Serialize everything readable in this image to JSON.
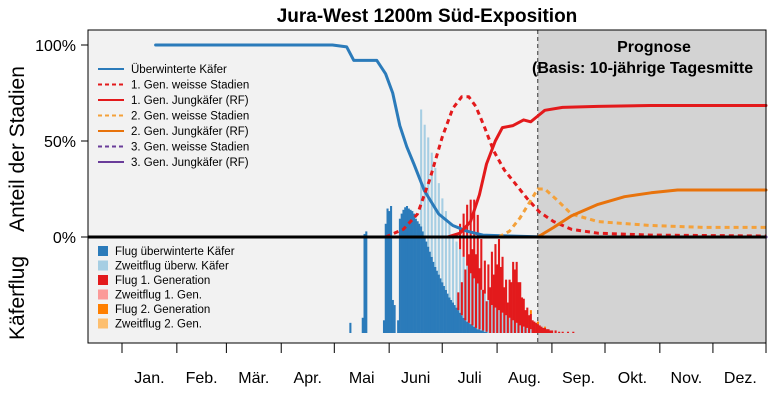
{
  "chart_data": {
    "type": "line",
    "title": "Jura-West 1200m Süd-Exposition",
    "ylabel": "Anteil der Stadien",
    "ylabel2": "Käferflug",
    "ylim": [
      0,
      100
    ],
    "yticks": [
      "100%",
      "50%",
      "0%"
    ],
    "ytick_values": [
      100,
      50,
      0
    ],
    "months": [
      "Jan.",
      "Feb.",
      "Mär.",
      "Apr.",
      "Mai",
      "Juni",
      "Juli",
      "Aug.",
      "Sep.",
      "Okt.",
      "Nov.",
      "Dez."
    ],
    "x_unit": "day_of_year",
    "xlim": [
      1,
      365
    ],
    "forecast": {
      "start_day": 236,
      "label_line1": "Prognose",
      "label_line2": "(Basis: 10-jährige Tagesmitte",
      "shade_color": "#d3d3d3",
      "panel_color": "#f2f2f2"
    },
    "series": [
      {
        "name": "Überwinterte Käfer",
        "color": "#2b7bba",
        "dash": "solid",
        "points": [
          [
            20,
            100
          ],
          [
            80,
            100
          ],
          [
            120,
            100
          ],
          [
            128,
            99
          ],
          [
            132,
            92
          ],
          [
            145,
            92
          ],
          [
            150,
            85
          ],
          [
            154,
            75
          ],
          [
            158,
            58
          ],
          [
            162,
            47
          ],
          [
            166,
            38
          ],
          [
            172,
            24
          ],
          [
            180,
            12
          ],
          [
            188,
            6
          ],
          [
            196,
            3
          ],
          [
            205,
            1
          ],
          [
            220,
            0.5
          ],
          [
            240,
            0
          ],
          [
            365,
            0
          ]
        ]
      },
      {
        "name": "1. Gen. weisse Stadien",
        "color": "#e31a1c",
        "dash": "dotted",
        "points": [
          [
            150,
            0
          ],
          [
            160,
            4
          ],
          [
            168,
            12
          ],
          [
            175,
            30
          ],
          [
            182,
            52
          ],
          [
            188,
            67
          ],
          [
            193,
            73
          ],
          [
            197,
            73
          ],
          [
            201,
            68
          ],
          [
            206,
            57
          ],
          [
            211,
            45
          ],
          [
            217,
            35
          ],
          [
            224,
            27
          ],
          [
            230,
            20
          ],
          [
            237,
            13
          ],
          [
            245,
            8
          ],
          [
            255,
            4
          ],
          [
            270,
            2
          ],
          [
            300,
            1
          ],
          [
            365,
            0.5
          ]
        ]
      },
      {
        "name": "1. Gen. Jungkäfer (RF)",
        "color": "#e31a1c",
        "dash": "solid",
        "points": [
          [
            185,
            0
          ],
          [
            192,
            2
          ],
          [
            198,
            8
          ],
          [
            203,
            22
          ],
          [
            207,
            38
          ],
          [
            212,
            50
          ],
          [
            216,
            57
          ],
          [
            222,
            58
          ],
          [
            228,
            61
          ],
          [
            232,
            60
          ],
          [
            236,
            63
          ],
          [
            240,
            66
          ],
          [
            250,
            67.5
          ],
          [
            270,
            68
          ],
          [
            300,
            68.5
          ],
          [
            365,
            68.5
          ]
        ]
      },
      {
        "name": "2. Gen. weisse Stadien",
        "color": "#f4a13a",
        "dash": "dotted",
        "points": [
          [
            214,
            0
          ],
          [
            220,
            3
          ],
          [
            226,
            10
          ],
          [
            232,
            19
          ],
          [
            236,
            25
          ],
          [
            240,
            25
          ],
          [
            246,
            20
          ],
          [
            255,
            12
          ],
          [
            270,
            8
          ],
          [
            300,
            6
          ],
          [
            330,
            5
          ],
          [
            365,
            5
          ]
        ]
      },
      {
        "name": "2. Gen. Jungkäfer (RF)",
        "color": "#e8730c",
        "dash": "solid",
        "points": [
          [
            236,
            0
          ],
          [
            245,
            5
          ],
          [
            255,
            11
          ],
          [
            270,
            17
          ],
          [
            285,
            21
          ],
          [
            300,
            23
          ],
          [
            315,
            24.5
          ],
          [
            330,
            24.5
          ],
          [
            365,
            24.5
          ]
        ]
      },
      {
        "name": "3. Gen. weisse Stadien",
        "color": "#6a3d9a",
        "dash": "dotted",
        "points": [
          [
            1,
            0
          ],
          [
            365,
            0
          ]
        ]
      },
      {
        "name": "3. Gen. Jungkäfer (RF)",
        "color": "#6a3d9a",
        "dash": "solid",
        "points": [
          [
            1,
            0
          ],
          [
            365,
            0
          ]
        ]
      }
    ],
    "flight_series": [
      {
        "name": "Flug überwinterte Käfer",
        "color": "#2b7bba"
      },
      {
        "name": "Zweitflug überw. Käfer",
        "color": "#a6cee3"
      },
      {
        "name": "Flug 1. Generation",
        "color": "#e31a1c"
      },
      {
        "name": "Zweitflug 1. Gen.",
        "color": "#fb9a99"
      },
      {
        "name": "Flug 2. Generation",
        "color": "#ff7f00"
      },
      {
        "name": "Zweitflug 2. Gen.",
        "color": "#fdbf6f"
      }
    ],
    "flight_bars": [
      {
        "day": 130,
        "value": 8,
        "series": 0
      },
      {
        "day": 137,
        "value": 12,
        "series": 0
      },
      {
        "day": 138,
        "value": 78,
        "series": 0
      },
      {
        "day": 139,
        "value": 80,
        "series": 0
      },
      {
        "day": 149,
        "value": 10,
        "series": 0
      },
      {
        "day": 150,
        "value": 86,
        "series": 0
      },
      {
        "day": 151,
        "value": 98,
        "series": 0
      },
      {
        "day": 152,
        "value": 96,
        "series": 0
      },
      {
        "day": 153,
        "value": 100,
        "series": 0
      },
      {
        "day": 154,
        "value": 26,
        "series": 0
      },
      {
        "day": 155,
        "value": 22,
        "series": 0
      },
      {
        "day": 157,
        "value": 10,
        "series": 0
      },
      {
        "day": 158,
        "value": 90,
        "series": 0
      },
      {
        "day": 159,
        "value": 94,
        "series": 0
      },
      {
        "day": 160,
        "value": 97,
        "series": 0
      },
      {
        "day": 161,
        "value": 99,
        "series": 0
      },
      {
        "day": 162,
        "value": 100,
        "series": 0
      },
      {
        "day": 163,
        "value": 98,
        "series": 0
      },
      {
        "day": 164,
        "value": 97,
        "series": 0
      },
      {
        "day": 165,
        "value": 96,
        "series": 0
      },
      {
        "day": 166,
        "value": 94,
        "series": 0
      },
      {
        "day": 167,
        "value": 90,
        "series": 0
      },
      {
        "day": 168,
        "value": 88,
        "series": 0
      },
      {
        "day": 169,
        "value": 86,
        "series": 0
      },
      {
        "day": 170,
        "value": 84,
        "series": 0
      },
      {
        "day": 171,
        "value": 80,
        "series": 0
      },
      {
        "day": 172,
        "value": 76,
        "series": 0
      },
      {
        "day": 173,
        "value": 72,
        "series": 0
      },
      {
        "day": 174,
        "value": 68,
        "series": 0
      },
      {
        "day": 175,
        "value": 64,
        "series": 0
      },
      {
        "day": 176,
        "value": 60,
        "series": 0
      },
      {
        "day": 177,
        "value": 56,
        "series": 0
      },
      {
        "day": 178,
        "value": 52,
        "series": 0
      },
      {
        "day": 179,
        "value": 49,
        "series": 0
      },
      {
        "day": 180,
        "value": 46,
        "series": 0
      },
      {
        "day": 181,
        "value": 43,
        "series": 0
      },
      {
        "day": 182,
        "value": 40,
        "series": 0
      },
      {
        "day": 183,
        "value": 37,
        "series": 0
      },
      {
        "day": 184,
        "value": 34,
        "series": 0
      },
      {
        "day": 185,
        "value": 31,
        "series": 0
      },
      {
        "day": 186,
        "value": 28,
        "series": 0
      },
      {
        "day": 187,
        "value": 26,
        "series": 0
      },
      {
        "day": 188,
        "value": 24,
        "series": 0
      },
      {
        "day": 189,
        "value": 22,
        "series": 0
      },
      {
        "day": 190,
        "value": 20,
        "series": 0
      },
      {
        "day": 191,
        "value": 18,
        "series": 0
      },
      {
        "day": 192,
        "value": 16,
        "series": 0
      },
      {
        "day": 193,
        "value": 14,
        "series": 0
      },
      {
        "day": 194,
        "value": 12,
        "series": 0
      },
      {
        "day": 195,
        "value": 10,
        "series": 0
      },
      {
        "day": 196,
        "value": 9,
        "series": 0
      },
      {
        "day": 197,
        "value": 8,
        "series": 0
      },
      {
        "day": 198,
        "value": 7,
        "series": 0
      },
      {
        "day": 199,
        "value": 6,
        "series": 0
      },
      {
        "day": 200,
        "value": 5,
        "series": 0
      },
      {
        "day": 201,
        "value": 4,
        "series": 0
      },
      {
        "day": 202,
        "value": 3,
        "series": 0
      },
      {
        "day": 203,
        "value": 3,
        "series": 0
      },
      {
        "day": 204,
        "value": 2,
        "series": 0
      },
      {
        "day": 205,
        "value": 2,
        "series": 0
      },
      {
        "day": 206,
        "value": 1,
        "series": 0
      },
      {
        "day": 207,
        "value": 1,
        "series": 0
      },
      {
        "day": 170,
        "value": 92,
        "series": 1
      },
      {
        "day": 172,
        "value": 88,
        "series": 1
      },
      {
        "day": 174,
        "value": 86,
        "series": 1
      },
      {
        "day": 176,
        "value": 82,
        "series": 1
      },
      {
        "day": 178,
        "value": 78,
        "series": 1
      },
      {
        "day": 180,
        "value": 72,
        "series": 1
      },
      {
        "day": 182,
        "value": 66,
        "series": 1
      },
      {
        "day": 184,
        "value": 62,
        "series": 1
      },
      {
        "day": 186,
        "value": 58,
        "series": 1
      },
      {
        "day": 188,
        "value": 54,
        "series": 1
      },
      {
        "day": 190,
        "value": 52,
        "series": 1
      },
      {
        "day": 192,
        "value": 50,
        "series": 1
      },
      {
        "day": 194,
        "value": 48,
        "series": 1
      },
      {
        "day": 196,
        "value": 44,
        "series": 1
      },
      {
        "day": 198,
        "value": 40,
        "series": 1
      },
      {
        "day": 200,
        "value": 38,
        "series": 1
      },
      {
        "day": 202,
        "value": 36,
        "series": 1
      },
      {
        "day": 204,
        "value": 32,
        "series": 1
      },
      {
        "day": 206,
        "value": 30,
        "series": 1
      },
      {
        "day": 208,
        "value": 26,
        "series": 1
      },
      {
        "day": 210,
        "value": 22,
        "series": 1
      },
      {
        "day": 212,
        "value": 20,
        "series": 1
      },
      {
        "day": 214,
        "value": 18,
        "series": 1
      },
      {
        "day": 216,
        "value": 16,
        "series": 1
      },
      {
        "day": 218,
        "value": 14,
        "series": 1
      },
      {
        "day": 220,
        "value": 12,
        "series": 1
      },
      {
        "day": 222,
        "value": 10,
        "series": 1
      },
      {
        "day": 224,
        "value": 8,
        "series": 1
      },
      {
        "day": 226,
        "value": 6,
        "series": 1
      },
      {
        "day": 228,
        "value": 5,
        "series": 1
      },
      {
        "day": 230,
        "value": 4,
        "series": 1
      },
      {
        "day": 232,
        "value": 3,
        "series": 1
      },
      {
        "day": 191,
        "value": 14,
        "series": 2
      },
      {
        "day": 192,
        "value": 20,
        "series": 2
      },
      {
        "day": 193,
        "value": 26,
        "series": 2
      },
      {
        "day": 194,
        "value": 34,
        "series": 2
      },
      {
        "day": 195,
        "value": 40,
        "series": 2
      },
      {
        "day": 196,
        "value": 48,
        "series": 2
      },
      {
        "day": 197,
        "value": 54,
        "series": 2
      },
      {
        "day": 198,
        "value": 58,
        "series": 2
      },
      {
        "day": 199,
        "value": 60,
        "series": 2
      },
      {
        "day": 200,
        "value": 62,
        "series": 2
      },
      {
        "day": 201,
        "value": 58,
        "series": 2
      },
      {
        "day": 202,
        "value": 54,
        "series": 2
      },
      {
        "day": 203,
        "value": 48,
        "series": 2
      },
      {
        "day": 204,
        "value": 40,
        "series": 2
      },
      {
        "day": 205,
        "value": 32,
        "series": 2
      },
      {
        "day": 206,
        "value": 26,
        "series": 2
      },
      {
        "day": 207,
        "value": 24,
        "series": 2
      },
      {
        "day": 208,
        "value": 28,
        "series": 2
      },
      {
        "day": 209,
        "value": 36,
        "series": 2
      },
      {
        "day": 210,
        "value": 42,
        "series": 2
      },
      {
        "day": 211,
        "value": 46,
        "series": 2
      },
      {
        "day": 212,
        "value": 50,
        "series": 2
      },
      {
        "day": 213,
        "value": 54,
        "series": 2
      },
      {
        "day": 214,
        "value": 56,
        "series": 2
      },
      {
        "day": 215,
        "value": 52,
        "series": 2
      },
      {
        "day": 216,
        "value": 44,
        "series": 2
      },
      {
        "day": 217,
        "value": 36,
        "series": 2
      },
      {
        "day": 218,
        "value": 28,
        "series": 2
      },
      {
        "day": 219,
        "value": 24,
        "series": 2
      },
      {
        "day": 220,
        "value": 30,
        "series": 2
      },
      {
        "day": 221,
        "value": 40,
        "series": 2
      },
      {
        "day": 222,
        "value": 46,
        "series": 2
      },
      {
        "day": 223,
        "value": 50,
        "series": 2
      },
      {
        "day": 224,
        "value": 48,
        "series": 2
      },
      {
        "day": 225,
        "value": 40,
        "series": 2
      },
      {
        "day": 226,
        "value": 34,
        "series": 2
      },
      {
        "day": 227,
        "value": 28,
        "series": 2
      },
      {
        "day": 228,
        "value": 22,
        "series": 2
      },
      {
        "day": 229,
        "value": 18,
        "series": 2
      },
      {
        "day": 230,
        "value": 16,
        "series": 2
      },
      {
        "day": 231,
        "value": 14,
        "series": 2
      },
      {
        "day": 232,
        "value": 12,
        "series": 2
      },
      {
        "day": 233,
        "value": 10,
        "series": 2
      },
      {
        "day": 234,
        "value": 9,
        "series": 2
      },
      {
        "day": 235,
        "value": 8,
        "series": 2
      },
      {
        "day": 236,
        "value": 7,
        "series": 2
      },
      {
        "day": 237,
        "value": 6,
        "series": 2
      },
      {
        "day": 238,
        "value": 5,
        "series": 2
      },
      {
        "day": 239,
        "value": 4,
        "series": 2
      },
      {
        "day": 240,
        "value": 4,
        "series": 2
      },
      {
        "day": 241,
        "value": 3,
        "series": 2
      },
      {
        "day": 242,
        "value": 3,
        "series": 2
      },
      {
        "day": 243,
        "value": 2,
        "series": 2
      },
      {
        "day": 244,
        "value": 2,
        "series": 2
      },
      {
        "day": 246,
        "value": 2,
        "series": 2
      },
      {
        "day": 248,
        "value": 1,
        "series": 2
      },
      {
        "day": 250,
        "value": 1,
        "series": 2
      },
      {
        "day": 253,
        "value": 1,
        "series": 2
      },
      {
        "day": 256,
        "value": 1,
        "series": 2
      },
      {
        "day": 232,
        "value": 3,
        "series": 4
      },
      {
        "day": 236,
        "value": 2,
        "series": 4
      },
      {
        "day": 240,
        "value": 1,
        "series": 4
      }
    ],
    "flight_ylim": [
      0,
      100
    ],
    "legend_position": "left"
  }
}
